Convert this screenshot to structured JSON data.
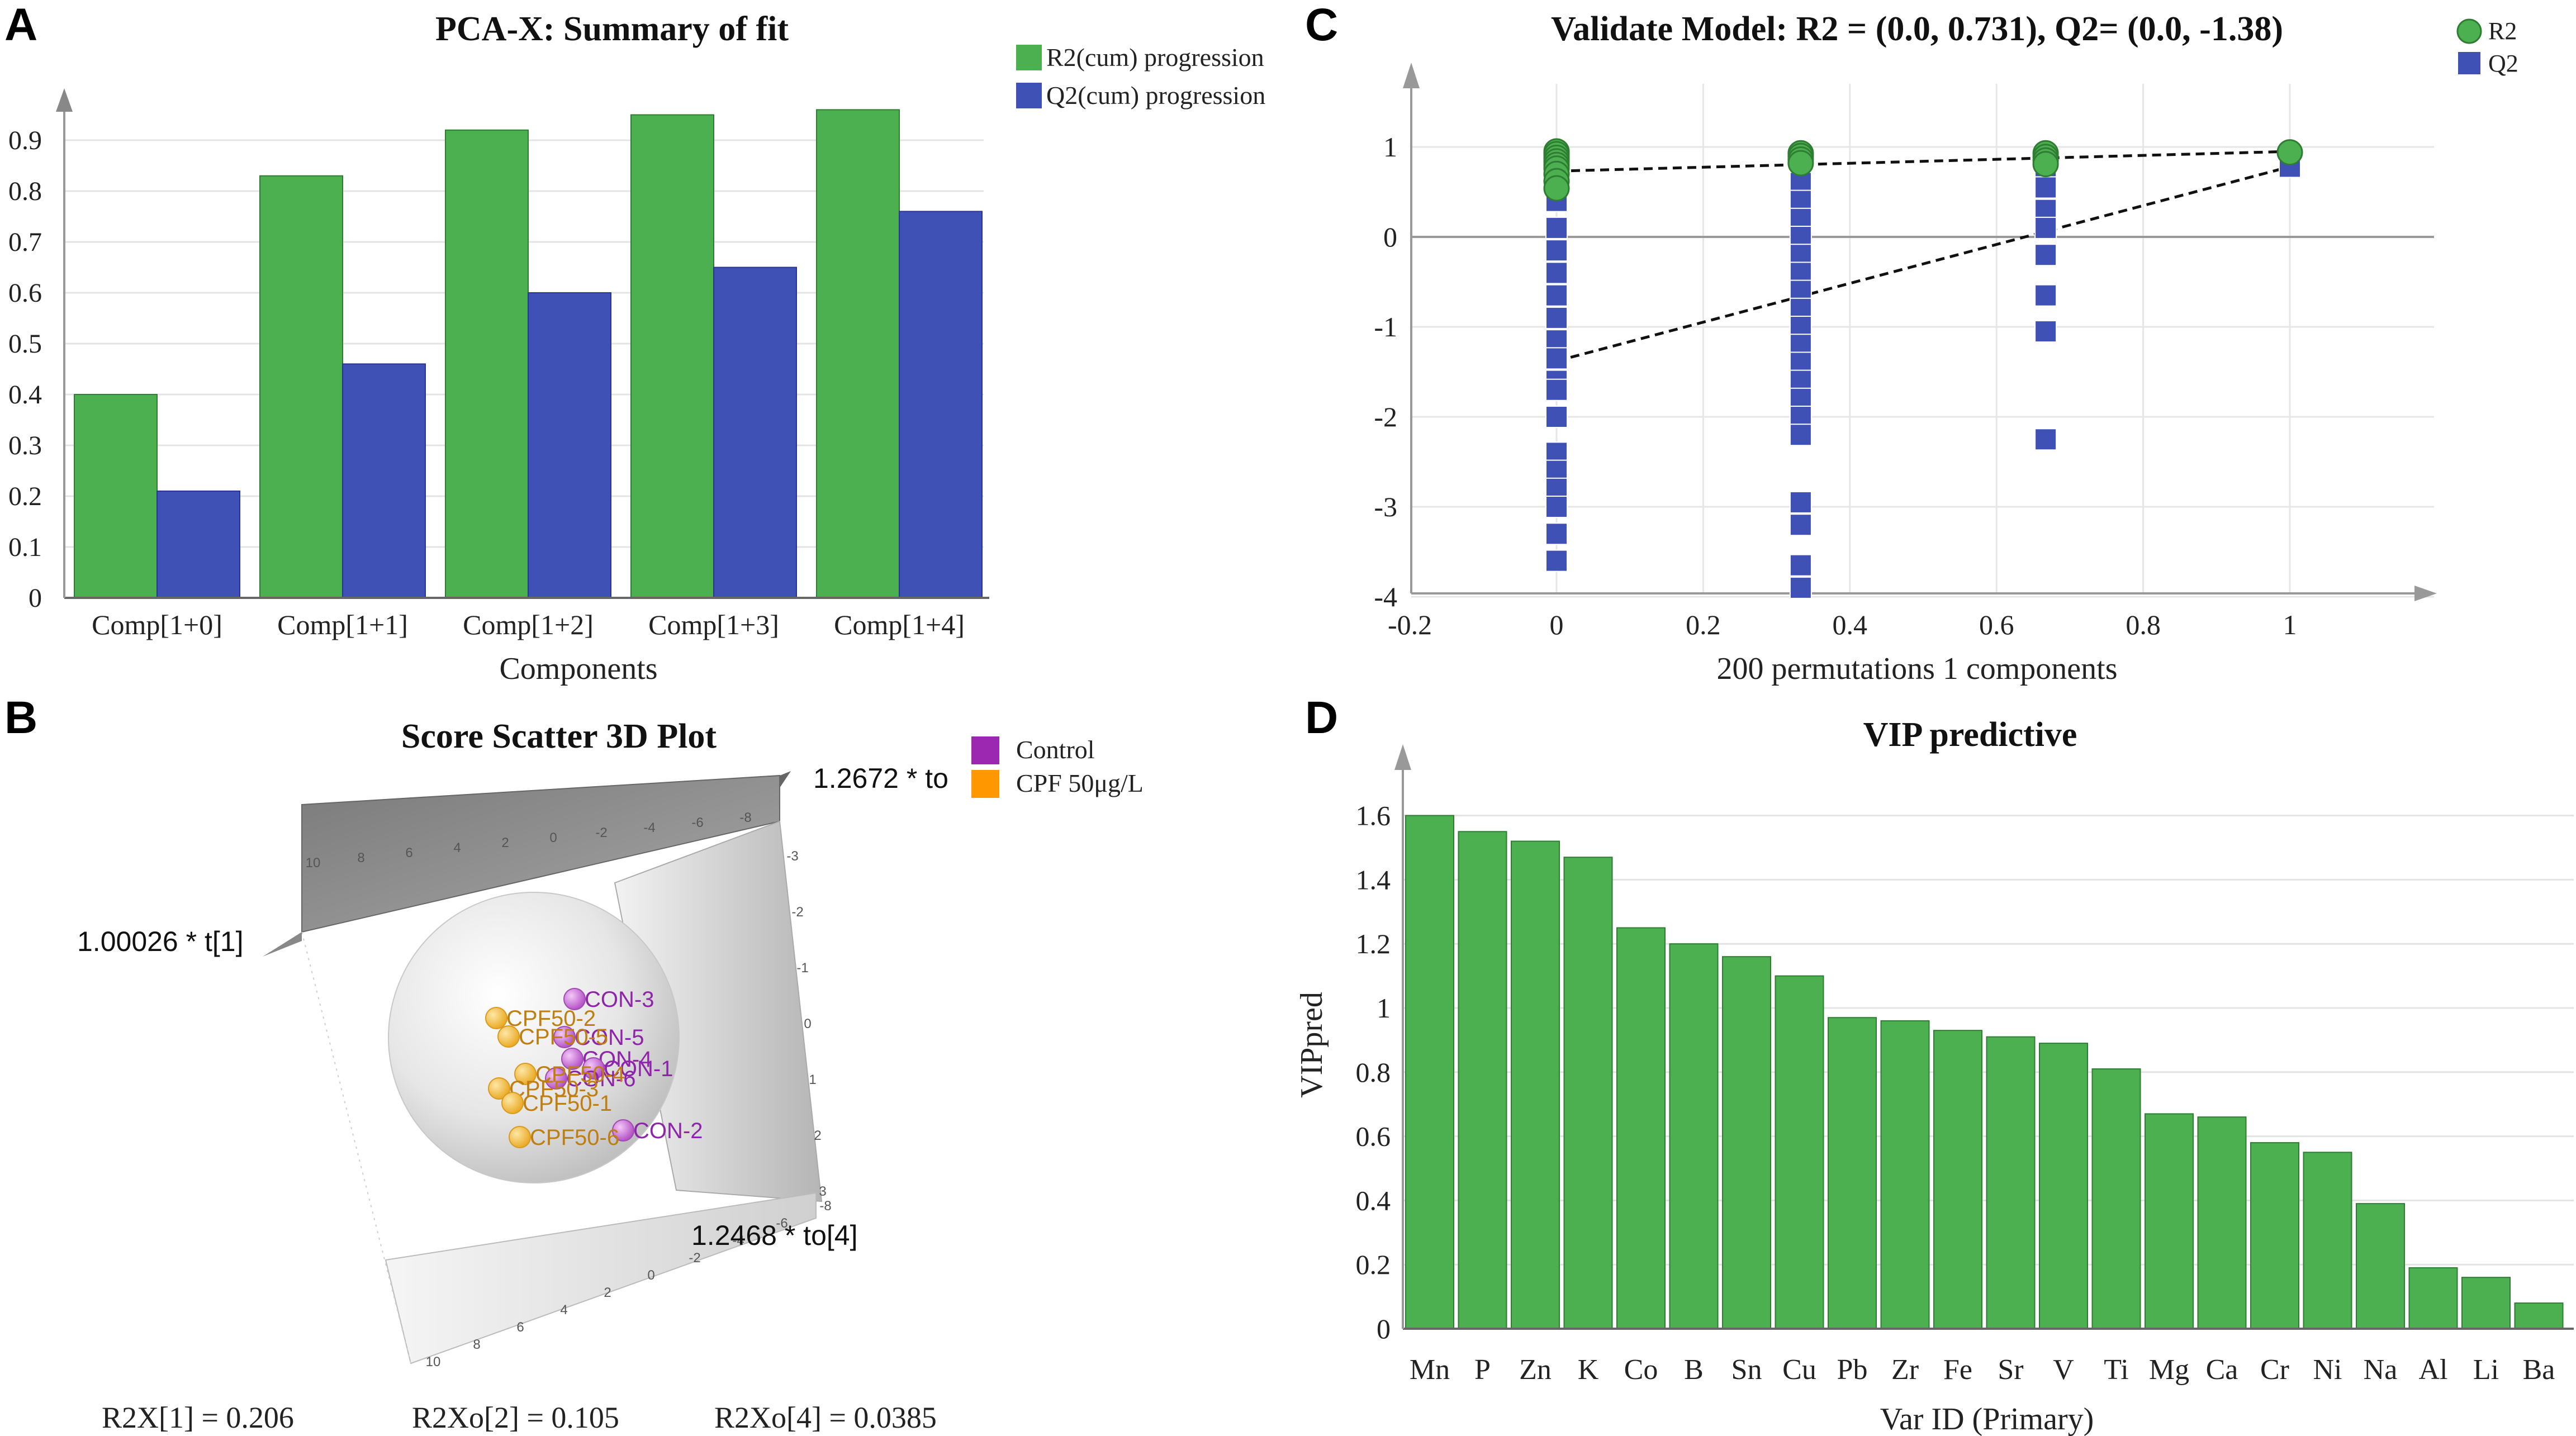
{
  "panels": {
    "A": {
      "letter": "A"
    },
    "B": {
      "letter": "B"
    },
    "C": {
      "letter": "C"
    },
    "D": {
      "letter": "D"
    }
  },
  "colors": {
    "green": "#4CAF50",
    "green_edge": "#2E7D32",
    "blue": "#3F51B5",
    "blue_edge": "#283593",
    "purple": "#9C27B0",
    "orange": "#FF9800",
    "gold": "#F4C04A"
  },
  "chart_data": [
    {
      "id": "A",
      "type": "bar",
      "title": "PCA-X: Summary of fit",
      "xlabel": "Components",
      "ylabel": "",
      "categories": [
        "Comp[1+0]",
        "Comp[1+1]",
        "Comp[1+2]",
        "Comp[1+3]",
        "Comp[1+4]"
      ],
      "series": [
        {
          "name": "R2(cum) progression",
          "values": [
            0.4,
            0.83,
            0.92,
            0.95,
            0.96
          ]
        },
        {
          "name": "Q2(cum) progression",
          "values": [
            0.21,
            0.46,
            0.6,
            0.65,
            0.76
          ]
        }
      ],
      "yticks": [
        "0",
        "0.1",
        "0.2",
        "0.3",
        "0.4",
        "0.5",
        "0.6",
        "0.7",
        "0.8",
        "0.9"
      ],
      "ylim": [
        0,
        1.0
      ],
      "grid": true,
      "legend": "top-right"
    },
    {
      "id": "B",
      "type": "scatter",
      "title": "Score Scatter 3D Plot",
      "legend": [
        "Control",
        "CPF 50μg/L"
      ],
      "axis_labels": {
        "t1": "1.00026 * t[1]",
        "to2": "1.2672 * to",
        "to4": "1.2468 * to[4]"
      },
      "points": [
        {
          "label": "CON-3",
          "group": "Control"
        },
        {
          "label": "CON-5",
          "group": "Control"
        },
        {
          "label": "CON-4",
          "group": "Control"
        },
        {
          "label": "CON-1",
          "group": "Control"
        },
        {
          "label": "CON-6",
          "group": "Control"
        },
        {
          "label": "CON-2",
          "group": "Control"
        },
        {
          "label": "CPF50-2",
          "group": "CPF 50μg/L"
        },
        {
          "label": "CPF50-5",
          "group": "CPF 50μg/L"
        },
        {
          "label": "CPF50-4",
          "group": "CPF 50μg/L"
        },
        {
          "label": "CPF50-3",
          "group": "CPF 50μg/L"
        },
        {
          "label": "CPF50-1",
          "group": "CPF 50μg/L"
        },
        {
          "label": "CPF50-6",
          "group": "CPF 50μg/L"
        }
      ],
      "footer": [
        "R2X[1] = 0.206",
        "R2Xo[2] = 0.105",
        "R2Xo[4] = 0.0385"
      ],
      "axis_ticks_top": [
        "10",
        "8",
        "6",
        "4",
        "2",
        "0",
        "-2",
        "-4",
        "-6",
        "-8"
      ],
      "axis_ticks_bottom": [
        "10",
        "8",
        "6",
        "4",
        "2",
        "0",
        "-2",
        "-4",
        "-6",
        "-8"
      ],
      "axis_ticks_right": [
        "-3",
        "-2",
        "-1",
        "0",
        "1",
        "2",
        "3"
      ]
    },
    {
      "id": "C",
      "type": "scatter",
      "title": "Validate Model: R2 = (0.0, 0.731), Q2= (0.0, -1.38)",
      "xlabel": "200 permutations 1 components",
      "ylabel": "",
      "xlim": [
        -0.2,
        1.2
      ],
      "ylim": [
        -4,
        1.5
      ],
      "xticks": [
        "-0.2",
        "0",
        "0.2",
        "0.4",
        "0.6",
        "0.8",
        "1"
      ],
      "yticks": [
        "-4",
        "-3",
        "-2",
        "-1",
        "0",
        "1"
      ],
      "legend_names": [
        "R2",
        "Q2"
      ],
      "r2_points": [
        [
          0,
          0.95
        ],
        [
          0,
          0.92
        ],
        [
          0,
          0.88
        ],
        [
          0,
          0.84
        ],
        [
          0,
          0.8
        ],
        [
          0,
          0.76
        ],
        [
          0,
          0.7
        ],
        [
          0,
          0.62
        ],
        [
          0,
          0.54
        ],
        [
          0.333,
          0.93
        ],
        [
          0.333,
          0.9
        ],
        [
          0.333,
          0.86
        ],
        [
          0.333,
          0.82
        ],
        [
          0.667,
          0.93
        ],
        [
          0.667,
          0.89
        ],
        [
          0.667,
          0.85
        ],
        [
          0.667,
          0.81
        ],
        [
          1,
          0.94
        ]
      ],
      "q2_points": [
        [
          0,
          0.8
        ],
        [
          0,
          0.7
        ],
        [
          0,
          0.4
        ],
        [
          0,
          0.1
        ],
        [
          0,
          -0.15
        ],
        [
          0,
          -0.4
        ],
        [
          0,
          -0.65
        ],
        [
          0,
          -0.9
        ],
        [
          0,
          -1.15
        ],
        [
          0,
          -1.35
        ],
        [
          0,
          -1.6
        ],
        [
          0,
          -1.7
        ],
        [
          0,
          -2.0
        ],
        [
          0,
          -2.4
        ],
        [
          0,
          -2.6
        ],
        [
          0,
          -2.8
        ],
        [
          0,
          -3.0
        ],
        [
          0,
          -3.3
        ],
        [
          0,
          -3.6
        ],
        [
          0.333,
          0.8
        ],
        [
          0.333,
          0.6
        ],
        [
          0.333,
          0.4
        ],
        [
          0.333,
          0.2
        ],
        [
          0.333,
          0.0
        ],
        [
          0.333,
          -0.2
        ],
        [
          0.333,
          -0.4
        ],
        [
          0.333,
          -0.6
        ],
        [
          0.333,
          -0.8
        ],
        [
          0.333,
          -1.0
        ],
        [
          0.333,
          -1.2
        ],
        [
          0.333,
          -1.4
        ],
        [
          0.333,
          -1.6
        ],
        [
          0.333,
          -1.8
        ],
        [
          0.333,
          -2.0
        ],
        [
          0.333,
          -2.2
        ],
        [
          0.333,
          -2.95
        ],
        [
          0.333,
          -3.2
        ],
        [
          0.333,
          -3.65
        ],
        [
          0.333,
          -3.9
        ],
        [
          0.667,
          0.75
        ],
        [
          0.667,
          0.55
        ],
        [
          0.667,
          0.3
        ],
        [
          0.667,
          0.1
        ],
        [
          0.667,
          -0.2
        ],
        [
          0.667,
          -0.65
        ],
        [
          0.667,
          -1.05
        ],
        [
          0.667,
          -2.25
        ],
        [
          1,
          0.78
        ]
      ],
      "r2_line": [
        [
          0,
          0.731
        ],
        [
          1,
          0.95
        ]
      ],
      "q2_line": [
        [
          0,
          -1.38
        ],
        [
          1,
          0.78
        ]
      ]
    },
    {
      "id": "D",
      "type": "bar",
      "title": "VIP predictive",
      "xlabel": "Var ID (Primary)",
      "ylabel": "VIPpred",
      "categories": [
        "Mn",
        "P",
        "Zn",
        "K",
        "Co",
        "B",
        "Sn",
        "Cu",
        "Pb",
        "Zr",
        "Fe",
        "Sr",
        "V",
        "Ti",
        "Mg",
        "Ca",
        "Cr",
        "Ni",
        "Na",
        "Al",
        "Li",
        "Ba"
      ],
      "values": [
        1.6,
        1.55,
        1.52,
        1.47,
        1.25,
        1.2,
        1.16,
        1.1,
        0.97,
        0.96,
        0.93,
        0.91,
        0.89,
        0.81,
        0.67,
        0.66,
        0.58,
        0.55,
        0.39,
        0.19,
        0.16,
        0.08
      ],
      "yticks": [
        "0",
        "0.2",
        "0.4",
        "0.6",
        "0.8",
        "1",
        "1.2",
        "1.4",
        "1.6"
      ],
      "ylim": [
        0,
        1.75
      ],
      "grid": true
    }
  ]
}
